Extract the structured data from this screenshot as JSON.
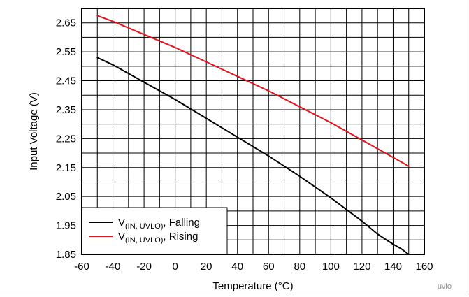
{
  "chart_data": {
    "type": "line",
    "xlabel": "Temperature (°C)",
    "ylabel": "Input Voltage (V)",
    "xlim": [
      -60,
      160
    ],
    "ylim": [
      1.85,
      2.7
    ],
    "x_ticks": [
      -60,
      -40,
      -20,
      0,
      20,
      40,
      60,
      80,
      100,
      120,
      140,
      160
    ],
    "y_ticks": [
      1.85,
      1.95,
      2.05,
      2.15,
      2.25,
      2.35,
      2.45,
      2.55,
      2.65
    ],
    "x_tick_labels": [
      "-60",
      "-40",
      "-20",
      "0",
      "20",
      "40",
      "60",
      "80",
      "100",
      "120",
      "140",
      "160"
    ],
    "y_tick_labels": [
      "1.85",
      "1.95",
      "2.05",
      "2.15",
      "2.25",
      "2.35",
      "2.45",
      "2.55",
      "2.65"
    ],
    "x_minor_step": 10,
    "y_minor_step": 0.05,
    "grid": true,
    "legend_position": "bottom-left",
    "figure_tag": "uvlo",
    "series": [
      {
        "name_main": "V",
        "name_sub": "(IN, UVLO)",
        "name_suffix": ", Falling",
        "color": "#000000",
        "x": [
          -50,
          -40,
          -20,
          0,
          20,
          40,
          60,
          80,
          100,
          120,
          130,
          140,
          145,
          150
        ],
        "y": [
          2.53,
          2.505,
          2.445,
          2.385,
          2.32,
          2.255,
          2.19,
          2.12,
          2.045,
          1.965,
          1.92,
          1.885,
          1.87,
          1.85
        ]
      },
      {
        "name_main": "V",
        "name_sub": "(IN, UVLO)",
        "name_suffix": ", Rising",
        "color": "#e0141e",
        "x": [
          -50,
          -40,
          -20,
          0,
          20,
          40,
          60,
          80,
          100,
          120,
          140,
          150
        ],
        "y": [
          2.675,
          2.655,
          2.61,
          2.565,
          2.515,
          2.465,
          2.415,
          2.36,
          2.305,
          2.245,
          2.185,
          2.155
        ]
      }
    ]
  }
}
